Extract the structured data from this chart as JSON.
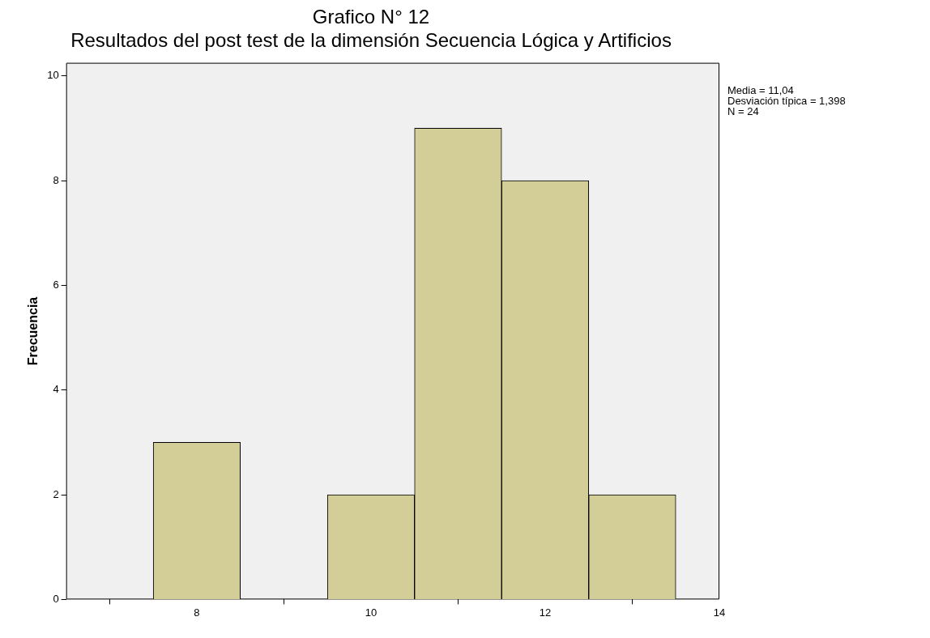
{
  "chart_data": {
    "type": "histogram",
    "title": "Grafico N° 12",
    "subtitle": "Resultados del post test de la dimensión Secuencia Lógica y Artificios",
    "ylabel": "Frecuencia",
    "bins": [
      7.5,
      8.5,
      9.5,
      10.5,
      11.5,
      12.5,
      13.5
    ],
    "values": [
      3,
      0,
      2,
      9,
      8,
      2
    ],
    "color": "#d3ce98",
    "xlim": [
      6.5,
      14
    ],
    "xticks": [
      8,
      10,
      12,
      14
    ],
    "ylim": [
      0,
      10.25
    ],
    "yticks": [
      0,
      2,
      4,
      6,
      8,
      10
    ],
    "grid": false,
    "annotations": [
      "Media = 11,04",
      "Desviación típica = 1,398",
      "N = 24"
    ]
  }
}
